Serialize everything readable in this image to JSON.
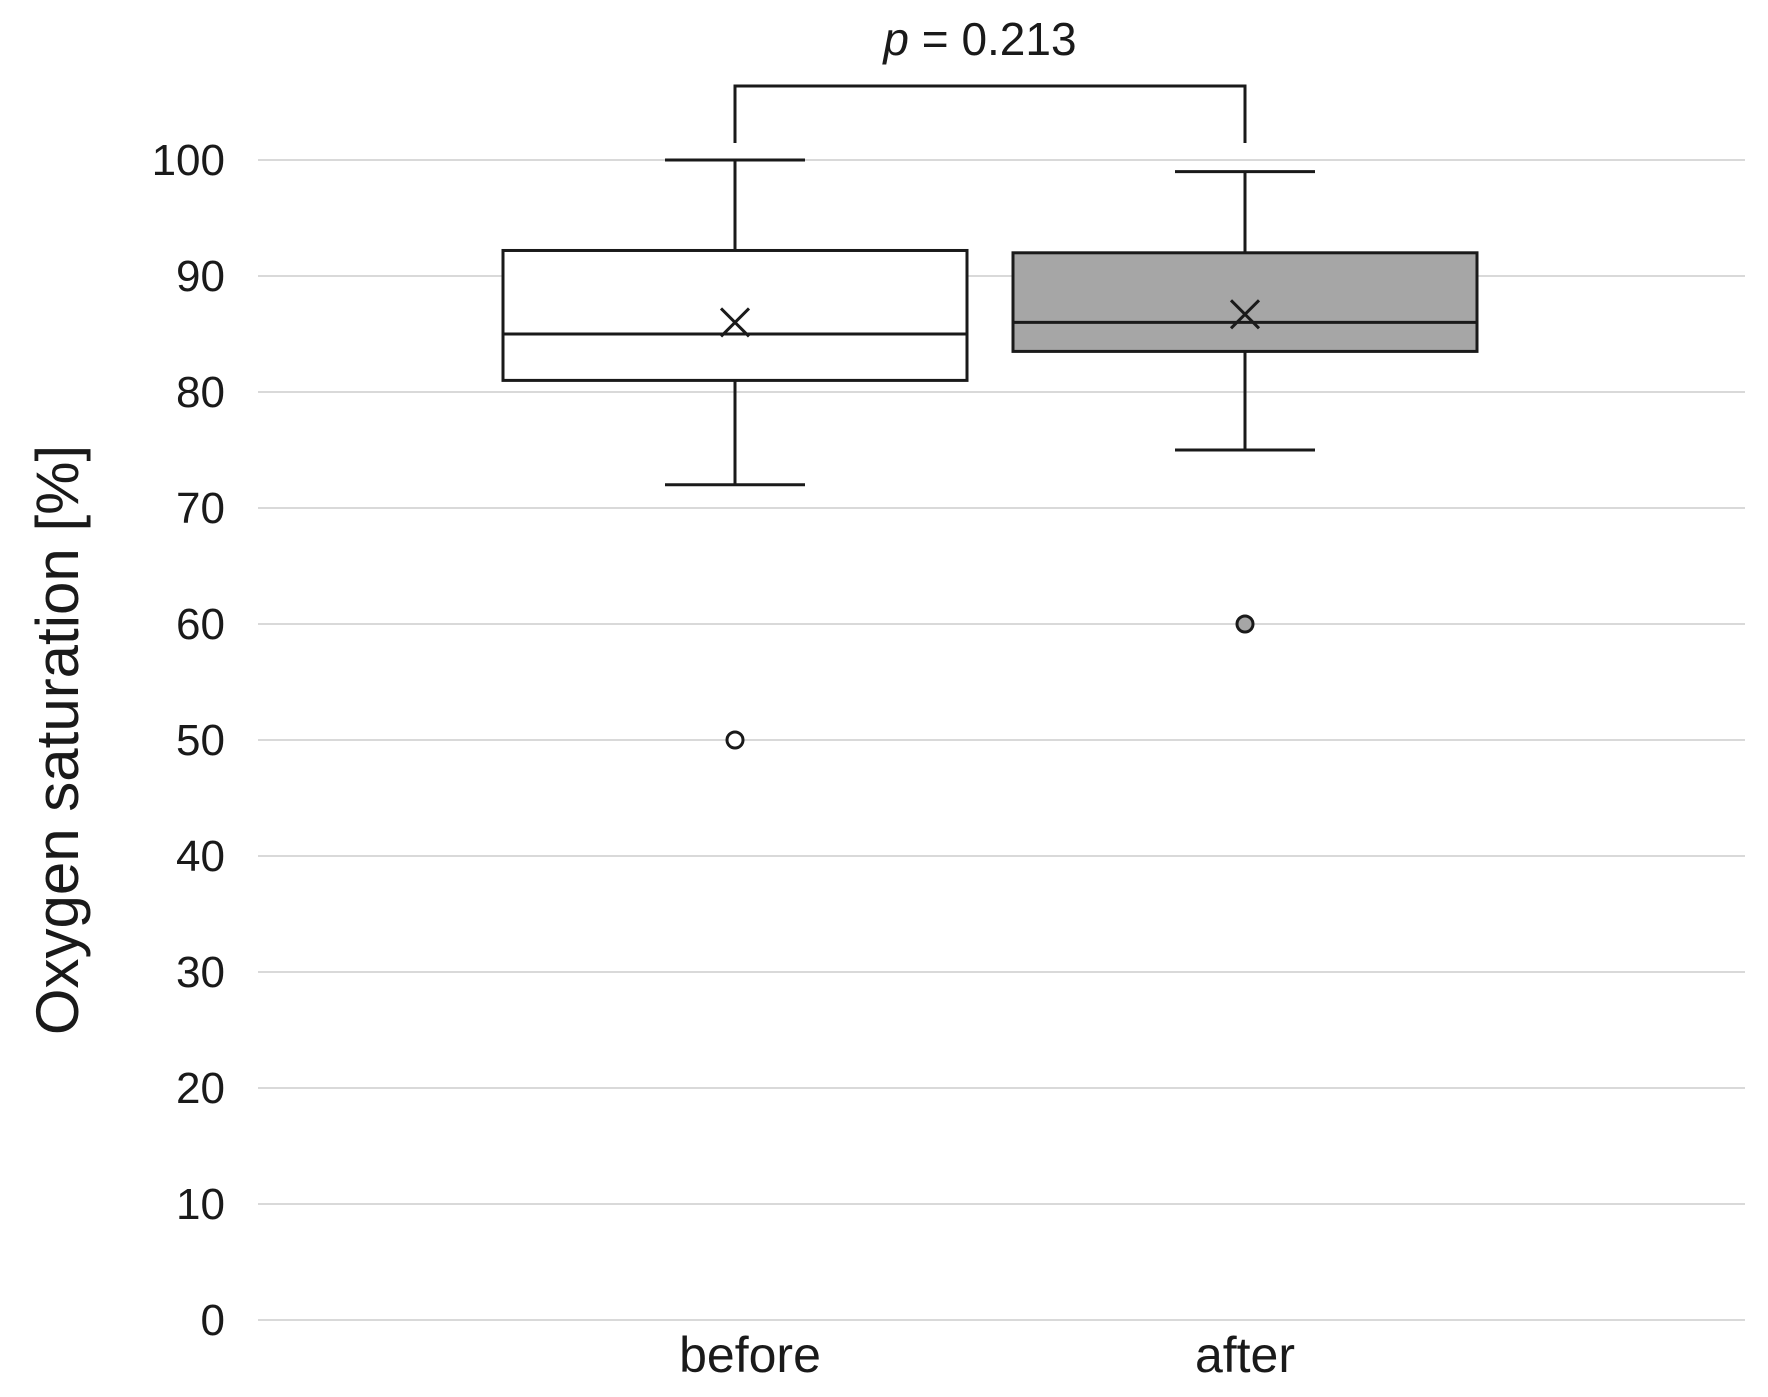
{
  "chart_data": {
    "type": "boxplot",
    "title": "",
    "xlabel": "",
    "ylabel": "Oxygen saturation [%]",
    "ylim": [
      0,
      100
    ],
    "yticks": [
      "0",
      "10",
      "20",
      "30",
      "40",
      "50",
      "60",
      "70",
      "80",
      "90",
      "100"
    ],
    "grid": true,
    "categories": [
      "before",
      "after"
    ],
    "series": [
      {
        "category": "before",
        "fill": "#ffffff",
        "whisker_low": 72,
        "q1": 81,
        "median": 85,
        "q3": 92.2,
        "whisker_high": 100,
        "mean": 86,
        "outliers": [
          50
        ]
      },
      {
        "category": "after",
        "fill": "#a6a6a6",
        "whisker_low": 75,
        "q1": 83.5,
        "median": 86,
        "q3": 92,
        "whisker_high": 99,
        "mean": 86.7,
        "outliers": [
          60
        ]
      }
    ],
    "annotation": {
      "p_symbol": "p",
      "p_text": " = 0.213",
      "between": [
        "before",
        "after"
      ]
    }
  }
}
